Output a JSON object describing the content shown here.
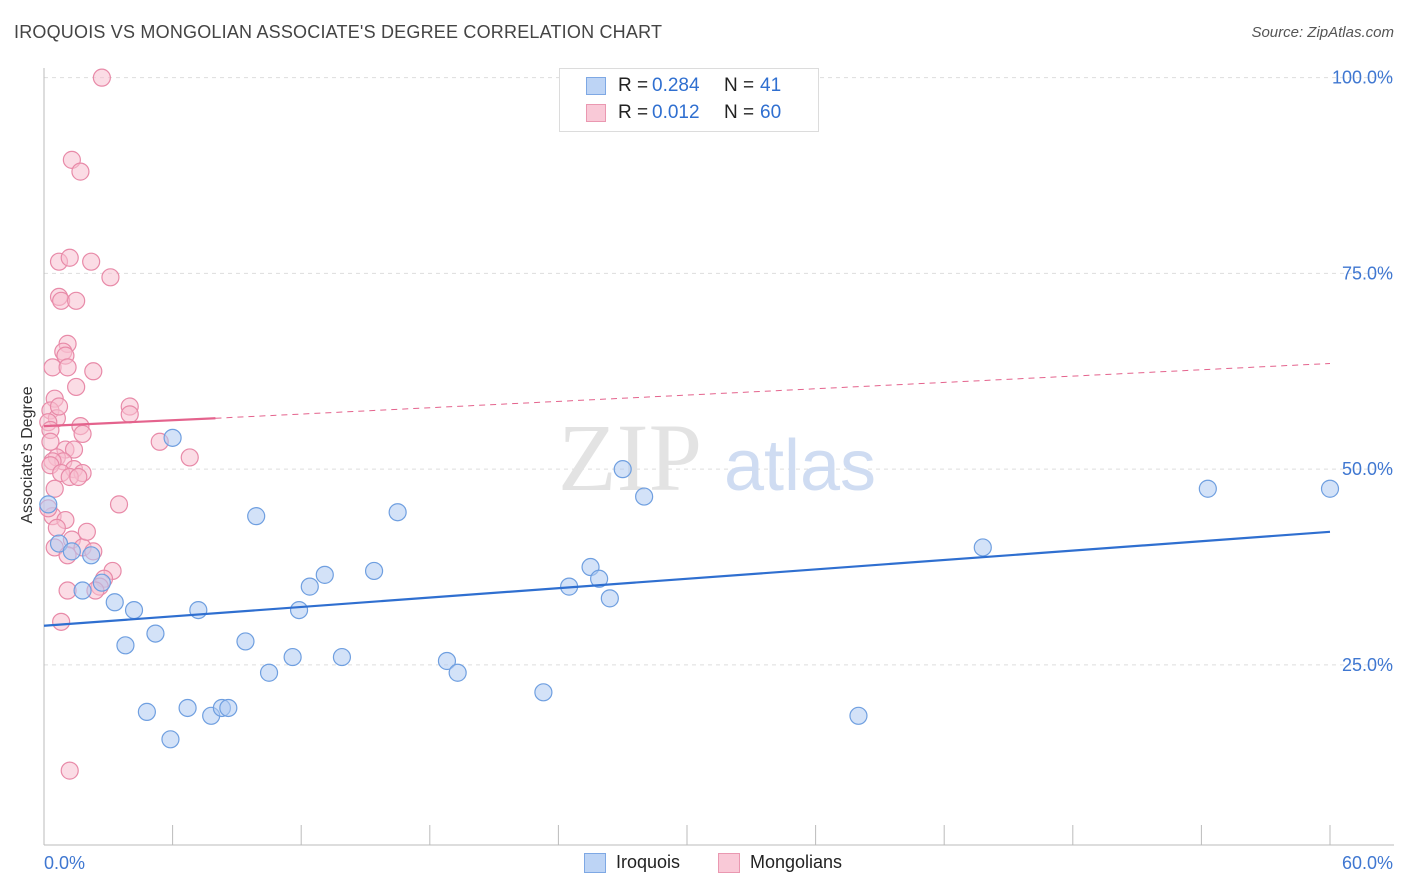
{
  "title": "IROQUOIS VS MONGOLIAN ASSOCIATE'S DEGREE CORRELATION CHART",
  "source": "Source: ZipAtlas.com",
  "watermark": {
    "zip": "ZIP",
    "atlas": "atlas"
  },
  "legend": {
    "rows": [
      {
        "r_label": "R =",
        "r_value": "0.284",
        "n_label": "N =",
        "n_value": "41"
      },
      {
        "r_label": "R =",
        "r_value": "0.012",
        "n_label": "N = ",
        "n_value": "60"
      }
    ]
  },
  "bottom_legend": [
    "Iroquois",
    "Mongolians"
  ],
  "colors": {
    "iroquois_fill": "#aecbf2",
    "iroquois_stroke": "#6f9fe0",
    "iroquois_line": "#2f6fd0",
    "mongolian_fill": "#f7bfd0",
    "mongolian_stroke": "#e88aa8",
    "mongolian_line": "#e4638d",
    "tick_label": "#3f77d1",
    "grid": "#dddddd"
  },
  "chart_data": {
    "type": "scatter",
    "title": "IROQUOIS VS MONGOLIAN ASSOCIATE'S DEGREE CORRELATION CHART",
    "xlabel": "",
    "ylabel": "Associate's Degree",
    "xlim": [
      0,
      60
    ],
    "ylim": [
      2,
      102
    ],
    "x_tick_labels": [
      "0.0%",
      "60.0%"
    ],
    "y_ticks": [
      25,
      50,
      75,
      100
    ],
    "y_tick_labels": [
      "25.0%",
      "50.0%",
      "75.0%",
      "100.0%"
    ],
    "grid": true,
    "series": [
      {
        "name": "Iroquois",
        "R": 0.284,
        "N": 41,
        "trend": {
          "x": [
            0,
            60
          ],
          "y": [
            30.0,
            42.0
          ],
          "style": "solid"
        },
        "points": [
          [
            0.2,
            45.5
          ],
          [
            0.7,
            40.5
          ],
          [
            1.3,
            39.5
          ],
          [
            1.8,
            34.5
          ],
          [
            2.2,
            39.0
          ],
          [
            2.7,
            35.5
          ],
          [
            3.3,
            33.0
          ],
          [
            3.8,
            27.5
          ],
          [
            4.2,
            32.0
          ],
          [
            4.8,
            19.0
          ],
          [
            5.2,
            29.0
          ],
          [
            5.9,
            15.5
          ],
          [
            6.0,
            54.0
          ],
          [
            6.7,
            19.5
          ],
          [
            7.2,
            32.0
          ],
          [
            7.8,
            18.5
          ],
          [
            8.3,
            19.5
          ],
          [
            8.6,
            19.5
          ],
          [
            9.4,
            28.0
          ],
          [
            9.9,
            44.0
          ],
          [
            10.5,
            24.0
          ],
          [
            11.6,
            26.0
          ],
          [
            11.9,
            32.0
          ],
          [
            12.4,
            35.0
          ],
          [
            13.1,
            36.5
          ],
          [
            13.9,
            26.0
          ],
          [
            15.4,
            37.0
          ],
          [
            16.5,
            44.5
          ],
          [
            18.8,
            25.5
          ],
          [
            19.3,
            24.0
          ],
          [
            23.3,
            21.5
          ],
          [
            24.5,
            35.0
          ],
          [
            25.5,
            37.5
          ],
          [
            25.9,
            36.0
          ],
          [
            26.4,
            33.5
          ],
          [
            27.0,
            50.0
          ],
          [
            28.0,
            46.5
          ],
          [
            38.0,
            18.5
          ],
          [
            43.8,
            40.0
          ],
          [
            54.3,
            47.5
          ],
          [
            60.0,
            47.5
          ]
        ]
      },
      {
        "name": "Mongolians",
        "R": 0.012,
        "N": 60,
        "trend": {
          "x": [
            0,
            8
          ],
          "y": [
            55.5,
            56.5
          ],
          "style": "solid",
          "extension": {
            "x": [
              8,
              60
            ],
            "y": [
              56.5,
              63.5
            ],
            "style": "dashed"
          }
        },
        "points": [
          [
            2.7,
            100.0
          ],
          [
            1.3,
            89.5
          ],
          [
            1.7,
            88.0
          ],
          [
            0.7,
            76.5
          ],
          [
            1.2,
            77.0
          ],
          [
            2.2,
            76.5
          ],
          [
            3.1,
            74.5
          ],
          [
            0.7,
            72.0
          ],
          [
            0.8,
            71.5
          ],
          [
            1.5,
            71.5
          ],
          [
            1.1,
            66.0
          ],
          [
            0.9,
            65.0
          ],
          [
            1.0,
            64.5
          ],
          [
            0.4,
            63.0
          ],
          [
            1.1,
            63.0
          ],
          [
            2.3,
            62.5
          ],
          [
            1.5,
            60.5
          ],
          [
            0.5,
            59.0
          ],
          [
            0.3,
            57.5
          ],
          [
            4.0,
            58.0
          ],
          [
            4.0,
            57.0
          ],
          [
            0.6,
            56.5
          ],
          [
            0.2,
            56.0
          ],
          [
            1.7,
            55.5
          ],
          [
            0.3,
            55.0
          ],
          [
            1.8,
            54.5
          ],
          [
            0.3,
            53.5
          ],
          [
            5.4,
            53.5
          ],
          [
            1.0,
            52.5
          ],
          [
            1.4,
            52.5
          ],
          [
            0.6,
            51.5
          ],
          [
            0.9,
            51.0
          ],
          [
            0.4,
            51.0
          ],
          [
            6.8,
            51.5
          ],
          [
            0.3,
            50.5
          ],
          [
            1.4,
            50.0
          ],
          [
            1.8,
            49.5
          ],
          [
            0.8,
            49.5
          ],
          [
            1.2,
            49.0
          ],
          [
            1.6,
            49.0
          ],
          [
            3.5,
            45.5
          ],
          [
            0.4,
            44.0
          ],
          [
            1.0,
            43.5
          ],
          [
            0.6,
            42.5
          ],
          [
            1.3,
            41.0
          ],
          [
            0.5,
            40.0
          ],
          [
            1.8,
            40.0
          ],
          [
            2.3,
            39.5
          ],
          [
            1.1,
            39.0
          ],
          [
            3.2,
            37.0
          ],
          [
            2.8,
            36.0
          ],
          [
            2.6,
            35.0
          ],
          [
            1.1,
            34.5
          ],
          [
            2.4,
            34.5
          ],
          [
            0.8,
            30.5
          ],
          [
            1.2,
            11.5
          ],
          [
            0.2,
            45.0
          ],
          [
            0.5,
            47.5
          ],
          [
            2.0,
            42.0
          ],
          [
            0.7,
            58.0
          ]
        ]
      }
    ]
  }
}
